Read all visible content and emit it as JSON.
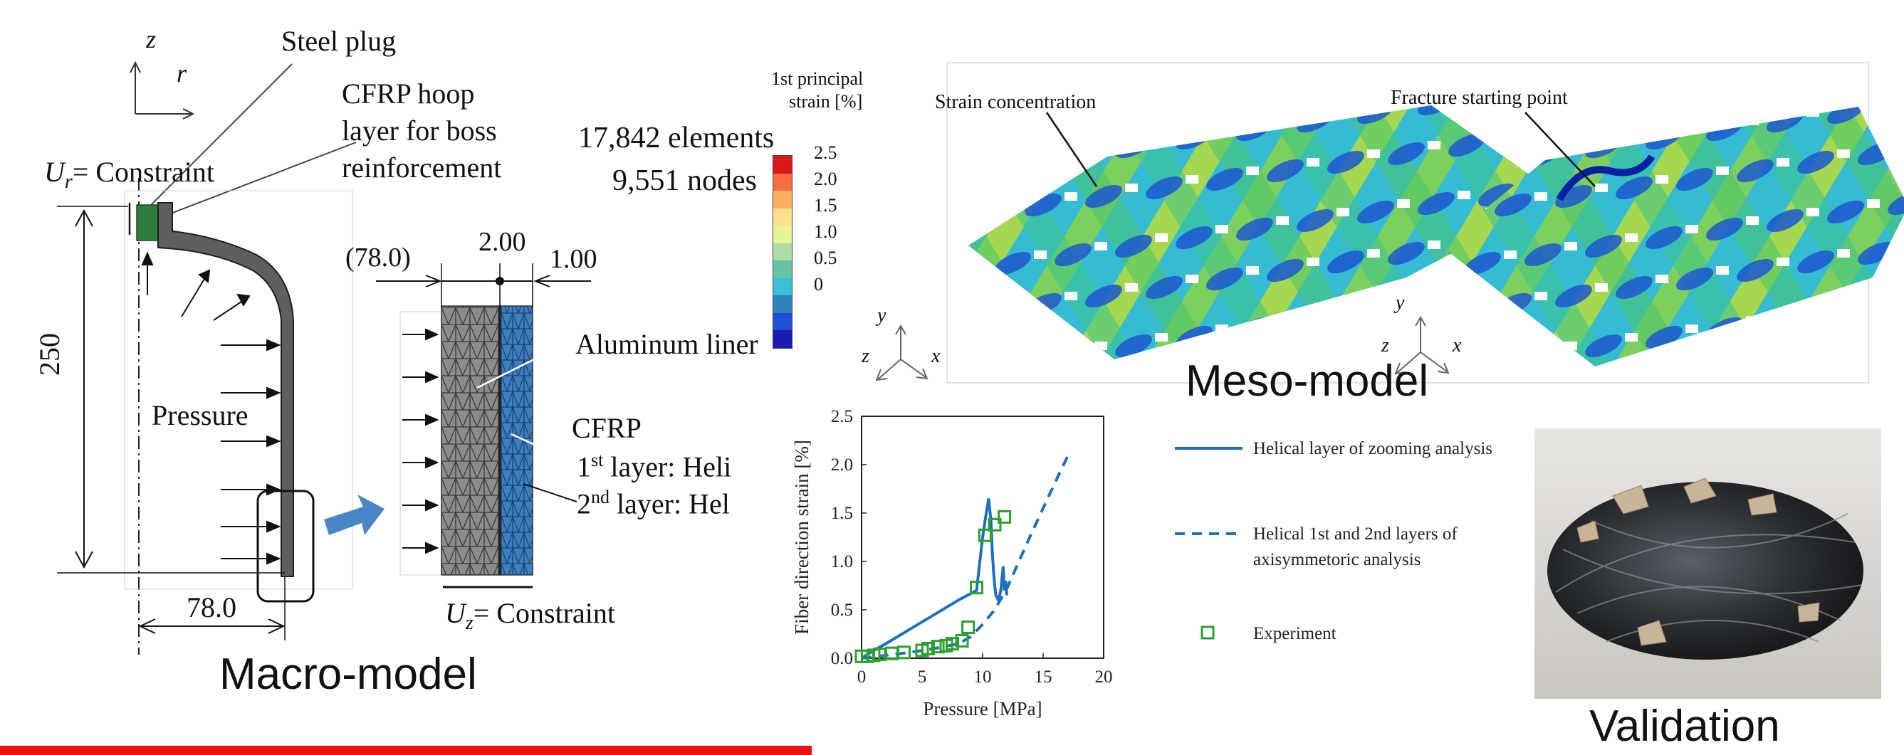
{
  "macro": {
    "axis_z": "z",
    "axis_r": "r",
    "steel_plug": "Steel plug",
    "cfrp_hoop_lines": [
      "CFRP hoop",
      "layer for boss",
      "reinforcement"
    ],
    "ur_constraint_sym": "U",
    "ur_constraint_sub": "r",
    "ur_constraint_text": "= Constraint",
    "height_dim": "250",
    "pressure": "Pressure",
    "radius_dim": "78.0",
    "elements": "17,842 elements",
    "nodes": "9,551 nodes",
    "detail_dim_left": "(78.0)",
    "detail_dim_mid": "2.00",
    "detail_dim_right": "1.00",
    "aluminum_liner": "Aluminum liner",
    "cfrp": "CFRP",
    "layer1_prefix": "1",
    "layer1_sup": "st",
    "layer1_text": " layer: Heli",
    "layer2_prefix": "2",
    "layer2_sup": "nd",
    "layer2_text": " layer: Hel",
    "uz_constraint_sym": "U",
    "uz_constraint_sub": "z",
    "uz_constraint_text": "= Constraint",
    "caption": "Macro-model"
  },
  "meso": {
    "scale_title_lines": [
      "1st principal",
      "strain [%]"
    ],
    "scale_ticks": [
      "2.5",
      "2.0",
      "1.5",
      "1.0",
      "0.5",
      "0"
    ],
    "scale_colors": [
      "#d7191c",
      "#f46d43",
      "#fdae61",
      "#fee08b",
      "#e6f598",
      "#abdda4",
      "#66c2a5",
      "#3bbfd6",
      "#2b83ba",
      "#1f4fd6",
      "#1a1ab0"
    ],
    "strain_concentration": "Strain concentration",
    "fracture_starting_point": "Fracture starting point",
    "axis_y": "y",
    "axis_z": "z",
    "axis_x": "x",
    "caption": "Meso-model"
  },
  "chart_data": {
    "type": "line",
    "xlabel": "Pressure [MPa]",
    "ylabel": "Fiber direction strain [%]",
    "xlim": [
      0,
      20
    ],
    "ylim": [
      0,
      2.5
    ],
    "xticks": [
      "0",
      "5",
      "10",
      "15",
      "20"
    ],
    "yticks": [
      "0.0",
      "0.5",
      "1.0",
      "1.5",
      "2.0",
      "2.5"
    ],
    "grid": false,
    "legend_position": "right-outside",
    "series": [
      {
        "name": "Helical layer of zooming analysis",
        "style": "solid",
        "color": "#1f6fc0",
        "x": [
          0,
          0.5,
          1.0,
          2.0,
          4.0,
          6.0,
          8.0,
          9.5,
          10.0,
          10.3,
          10.5,
          10.7,
          10.8,
          10.9,
          11.0,
          11.1,
          11.3,
          11.5,
          11.7,
          11.8,
          11.9,
          12.0
        ],
        "y": [
          0.0,
          0.04,
          0.08,
          0.15,
          0.3,
          0.45,
          0.6,
          0.7,
          1.25,
          1.5,
          1.65,
          1.4,
          1.1,
          0.9,
          0.75,
          0.65,
          0.6,
          0.7,
          0.95,
          0.7,
          0.8,
          0.65
        ]
      },
      {
        "name": "Helical 1st and 2nd layers of axisymmetoric analysis",
        "style": "dashed",
        "color": "#1f6fc0",
        "x": [
          0,
          2,
          4,
          6,
          8,
          9,
          10,
          11,
          12,
          13,
          14,
          15,
          16,
          17,
          17.3
        ],
        "y": [
          0.0,
          0.03,
          0.06,
          0.1,
          0.15,
          0.22,
          0.35,
          0.5,
          0.72,
          1.0,
          1.28,
          1.55,
          1.82,
          2.08,
          2.12
        ]
      },
      {
        "name": "Experiment",
        "style": "marker",
        "color": "#2ca02c",
        "x": [
          0.0,
          0.5,
          1.0,
          1.5,
          2.5,
          3.5,
          5.0,
          5.5,
          6.3,
          7.0,
          7.5,
          8.3,
          8.8,
          9.5,
          10.2,
          11.0,
          11.8
        ],
        "y": [
          0.02,
          0.02,
          0.03,
          0.04,
          0.05,
          0.06,
          0.08,
          0.1,
          0.12,
          0.13,
          0.15,
          0.18,
          0.32,
          0.73,
          1.27,
          1.38,
          1.46
        ]
      }
    ]
  },
  "validation": {
    "caption": "Validation"
  }
}
